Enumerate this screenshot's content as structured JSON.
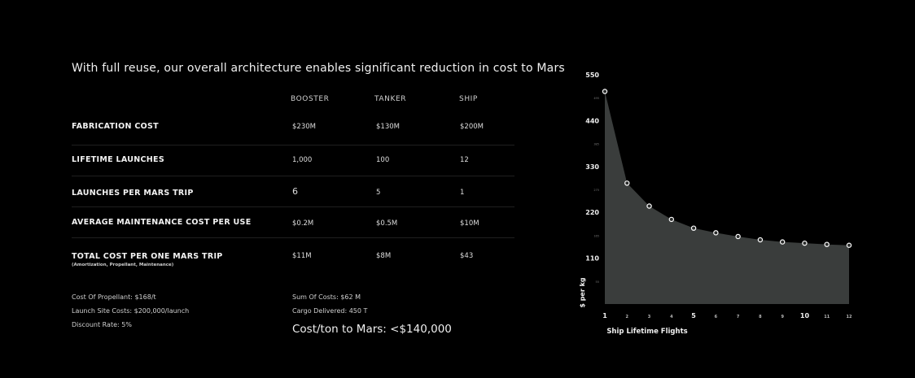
{
  "title": "With full reuse, our overall architecture enables significant reduction in cost to Mars",
  "table": {
    "columns": [
      "BOOSTER",
      "TANKER",
      "SHIP"
    ],
    "rows": [
      {
        "label": "FABRICATION COST",
        "values": [
          "$230M",
          "$130M",
          "$200M"
        ]
      },
      {
        "label": "LIFETIME LAUNCHES",
        "values": [
          "1,000",
          "100",
          "12"
        ]
      },
      {
        "label": "LAUNCHES PER MARS TRIP",
        "values": [
          "6",
          "5",
          "1"
        ]
      },
      {
        "label": "AVERAGE MAINTENANCE COST PER USE",
        "values": [
          "$0.2M",
          "$0.5M",
          "$10M"
        ]
      },
      {
        "label": "TOTAL COST PER ONE MARS TRIP",
        "sublabel": "(Amortization, Propellant, Maintenance)",
        "values": [
          "$11M",
          "$8M",
          "$43"
        ]
      }
    ]
  },
  "notes": {
    "left": [
      "Cost Of Propellant: $168/t",
      "Launch Site Costs: $200,000/launch",
      "Discount Rate: 5%"
    ],
    "right": [
      "Sum Of Costs: $62 M",
      "Cargo Delivered: 450 T"
    ],
    "highlight": "Cost/ton to Mars: <$140,000"
  },
  "chart_data": {
    "type": "area",
    "x": [
      1,
      2,
      3,
      4,
      5,
      6,
      7,
      8,
      9,
      10,
      11,
      12
    ],
    "values": [
      510,
      290,
      235,
      203,
      182,
      171,
      162,
      154,
      149,
      146,
      143,
      141
    ],
    "xlabel": "Ship Lifetime Flights",
    "ylabel": "$ per kg",
    "ylim": [
      0,
      550
    ],
    "xlim": [
      1,
      12
    ],
    "y_ticks": [
      110,
      220,
      330,
      440,
      550
    ],
    "y_minor_ticks": [
      55,
      165,
      275,
      385,
      495
    ],
    "x_tick_labels": [
      "1",
      "2",
      "3",
      "4",
      "5",
      "6",
      "7",
      "8",
      "9",
      "10",
      "11",
      "12"
    ],
    "fill_color": "#3a3d3c",
    "marker_color": "#ffffff",
    "grid": false
  }
}
